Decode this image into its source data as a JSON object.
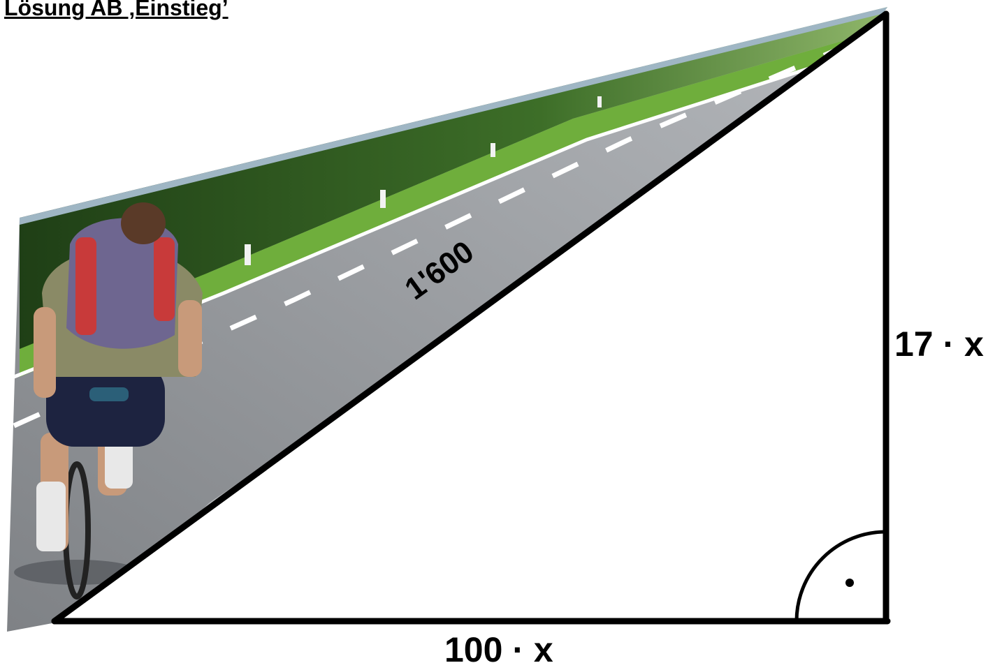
{
  "title": "Lösung AB ‚Einstieg’",
  "triangle": {
    "hypotenuse_label": "1'600",
    "base_label": "100 · x",
    "height_label": "17 · x",
    "right_angle_marker": "right-angle-arc-with-dot"
  },
  "photo": {
    "subject": "cyclist-on-road-photo"
  },
  "colors": {
    "line": "#000000",
    "sky_edge": "#9fb6c4",
    "forest": "#2f5a1f",
    "grass": "#6fae3c",
    "road": "#8a8d91",
    "lane_marking": "#ffffff"
  }
}
